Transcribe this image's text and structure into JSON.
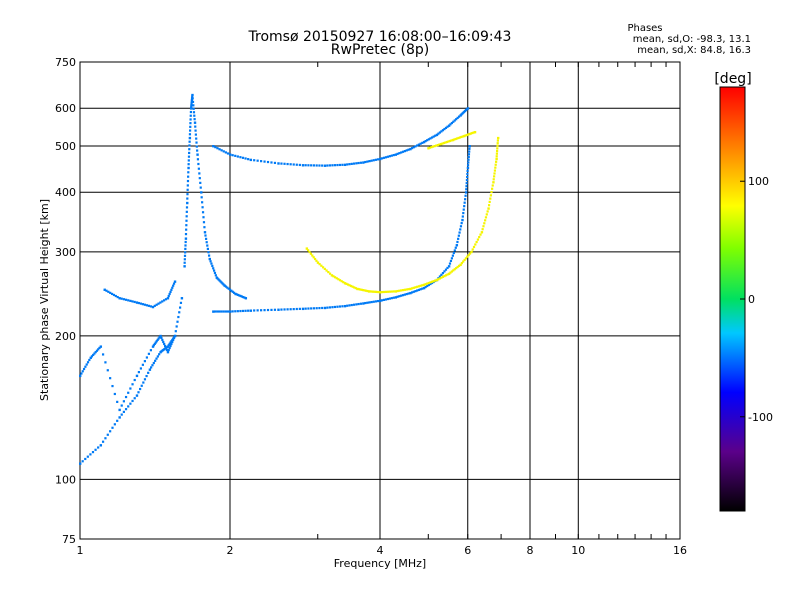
{
  "chart_data": {
    "type": "scatter",
    "title": "Tromsø 20150927 16:08:00–16:09:43",
    "subtitle": "RwPretec (8p)",
    "xlabel": "Frequency [MHz]",
    "ylabel": "Stationary phase Virtual Height [km]",
    "x_scale": "log",
    "y_scale": "log",
    "xlim": [
      1,
      16
    ],
    "ylim": [
      75,
      750
    ],
    "x_ticks": [
      1,
      2,
      4,
      6,
      8,
      10,
      16
    ],
    "x_tick_labels": [
      "1",
      "2",
      "4",
      "6",
      "8",
      "10",
      "16"
    ],
    "y_ticks": [
      75,
      100,
      200,
      300,
      400,
      500,
      600,
      750
    ],
    "y_tick_labels": [
      "75",
      "100",
      "200",
      "300",
      "400",
      "500",
      "600",
      "750"
    ],
    "grid": true,
    "phases_title": "Phases",
    "phases_o": "mean, sd,O:  -98.3,  13.1",
    "phases_x": "mean, sd,X:  84.8,  16.3",
    "colorbar": {
      "label": "[deg]",
      "range": [
        -180,
        180
      ],
      "ticks": [
        100,
        0,
        -100
      ],
      "tick_labels": [
        "100",
        "0",
        "-100"
      ]
    },
    "traces": [
      {
        "mode": "O",
        "phase_deg": -100,
        "points": [
          [
            1.0,
            165
          ],
          [
            1.05,
            180
          ],
          [
            1.1,
            190
          ],
          [
            1.2,
            140
          ],
          [
            1.3,
            165
          ],
          [
            1.4,
            190
          ],
          [
            1.45,
            200
          ],
          [
            1.5,
            185
          ],
          [
            1.55,
            200
          ],
          [
            1.6,
            240
          ]
        ]
      },
      {
        "mode": "O",
        "phase_deg": -100,
        "points": [
          [
            1.0,
            108
          ],
          [
            1.1,
            118
          ],
          [
            1.2,
            135
          ],
          [
            1.3,
            150
          ],
          [
            1.38,
            170
          ],
          [
            1.45,
            185
          ],
          [
            1.5,
            190
          ],
          [
            1.55,
            200
          ]
        ]
      },
      {
        "mode": "O",
        "phase_deg": -100,
        "points": [
          [
            1.12,
            250
          ],
          [
            1.2,
            240
          ],
          [
            1.3,
            235
          ],
          [
            1.4,
            230
          ],
          [
            1.5,
            240
          ],
          [
            1.55,
            260
          ]
        ]
      },
      {
        "mode": "O",
        "phase_deg": -100,
        "points": [
          [
            1.62,
            280
          ],
          [
            1.63,
            320
          ],
          [
            1.64,
            380
          ],
          [
            1.65,
            450
          ],
          [
            1.66,
            520
          ],
          [
            1.67,
            600
          ],
          [
            1.68,
            640
          ],
          [
            1.7,
            560
          ],
          [
            1.72,
            480
          ],
          [
            1.75,
            400
          ],
          [
            1.78,
            330
          ],
          [
            1.82,
            290
          ],
          [
            1.88,
            265
          ],
          [
            1.95,
            255
          ],
          [
            2.05,
            245
          ],
          [
            2.15,
            240
          ]
        ]
      },
      {
        "mode": "O",
        "phase_deg": -100,
        "points": [
          [
            1.85,
            225
          ],
          [
            2.0,
            225
          ],
          [
            2.2,
            226
          ],
          [
            2.5,
            227
          ],
          [
            2.8,
            228
          ],
          [
            3.1,
            229
          ],
          [
            3.4,
            231
          ],
          [
            3.7,
            234
          ],
          [
            4.0,
            237
          ],
          [
            4.3,
            241
          ],
          [
            4.6,
            246
          ],
          [
            4.9,
            252
          ],
          [
            5.2,
            262
          ],
          [
            5.5,
            280
          ],
          [
            5.7,
            310
          ],
          [
            5.85,
            350
          ],
          [
            5.95,
            400
          ],
          [
            6.0,
            450
          ],
          [
            6.05,
            500
          ]
        ]
      },
      {
        "mode": "O",
        "phase_deg": -100,
        "points": [
          [
            1.85,
            500
          ],
          [
            2.0,
            480
          ],
          [
            2.2,
            468
          ],
          [
            2.5,
            460
          ],
          [
            2.8,
            456
          ],
          [
            3.1,
            455
          ],
          [
            3.4,
            457
          ],
          [
            3.7,
            462
          ],
          [
            4.0,
            470
          ],
          [
            4.3,
            480
          ],
          [
            4.6,
            493
          ],
          [
            4.9,
            510
          ],
          [
            5.2,
            528
          ],
          [
            5.5,
            552
          ],
          [
            5.8,
            580
          ],
          [
            6.0,
            600
          ]
        ]
      },
      {
        "mode": "X",
        "phase_deg": 100,
        "points": [
          [
            2.85,
            305
          ],
          [
            3.0,
            285
          ],
          [
            3.2,
            268
          ],
          [
            3.4,
            258
          ],
          [
            3.6,
            251
          ],
          [
            3.8,
            248
          ],
          [
            4.0,
            247
          ],
          [
            4.3,
            248
          ],
          [
            4.6,
            251
          ],
          [
            4.9,
            256
          ],
          [
            5.2,
            262
          ],
          [
            5.5,
            270
          ],
          [
            5.8,
            282
          ],
          [
            6.1,
            300
          ],
          [
            6.4,
            330
          ],
          [
            6.6,
            370
          ],
          [
            6.75,
            420
          ],
          [
            6.85,
            470
          ],
          [
            6.9,
            520
          ]
        ]
      },
      {
        "mode": "X",
        "phase_deg": 100,
        "points": [
          [
            5.0,
            495
          ],
          [
            5.3,
            505
          ],
          [
            5.6,
            515
          ],
          [
            5.9,
            525
          ],
          [
            6.2,
            535
          ]
        ]
      }
    ]
  }
}
